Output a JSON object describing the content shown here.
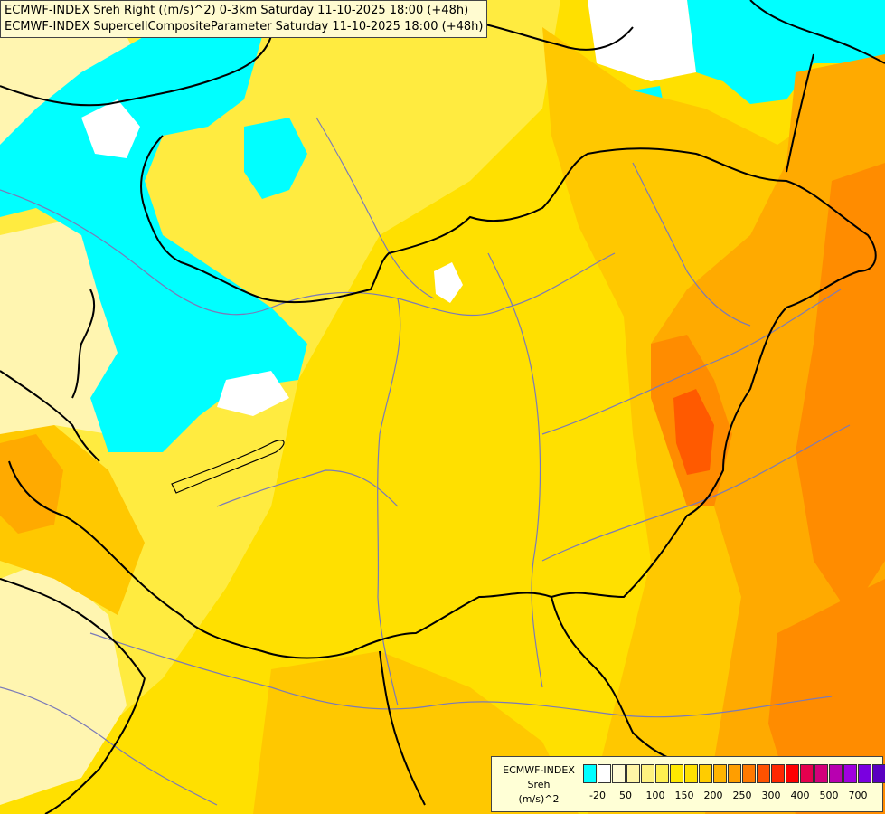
{
  "header": {
    "line1": "ECMWF-INDEX Sreh Right ((m/s)^2) 0-3km Saturday 11-10-2025 18:00 (+48h)",
    "line2": "ECMWF-INDEX SupercellCompositeParameter Saturday 11-10-2025 18:00 (+48h)"
  },
  "legend": {
    "line1": "ECMWF-INDEX",
    "line2": "Sreh",
    "line3": "(m/s)^2",
    "colors": [
      "#00ffff",
      "#ffffff",
      "#fffbd4",
      "#fff5a6",
      "#fff380",
      "#fff050",
      "#ffe800",
      "#ffe000",
      "#ffcc00",
      "#ffb400",
      "#ff9e00",
      "#ff7a00",
      "#ff5200",
      "#ff2800",
      "#ff0000",
      "#e6004e",
      "#d4007a",
      "#b800b0",
      "#a000e0",
      "#7a00e0",
      "#5a00c0",
      "#3200a8",
      "#1a0080"
    ],
    "ticks": [
      "-20",
      "50",
      "100",
      "150",
      "200",
      "250",
      "300",
      "400",
      "500",
      "700"
    ]
  },
  "map": {
    "colors": {
      "cyan": "#00ffff",
      "white": "#ffffff",
      "pale": "#fff5b0",
      "lightyellow": "#ffeb40",
      "yellow": "#ffe000",
      "gold": "#ffc800",
      "orange": "#ffaa00",
      "darkorange": "#ff8c00",
      "red": "#ff5a00",
      "border": "#000000",
      "river": "#7a7ab8"
    }
  }
}
